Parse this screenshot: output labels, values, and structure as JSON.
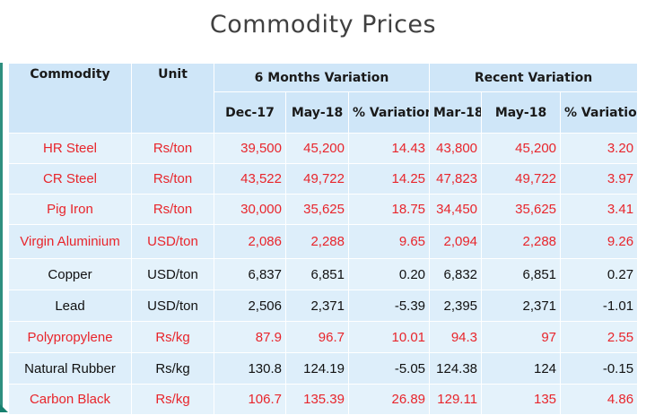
{
  "title": "Commodity Prices",
  "headers": {
    "commodity": "Commodity",
    "unit": "Unit",
    "six_month": "6 Months  Variation",
    "recent": "Recent Variation",
    "sub": [
      "Dec-17",
      "May-18",
      "% Variation",
      "Mar-18",
      "May-18",
      "% Variation"
    ]
  },
  "colors": {
    "red": "#e8252b",
    "black": "#111111",
    "header_bg": "#cfe6f8"
  },
  "rows": [
    {
      "name": "HR Steel",
      "unit": "Rs/ton",
      "dec17": "39,500",
      "may18a": "45,200",
      "var6": "14.43",
      "mar18": "43,800",
      "may18b": "45,200",
      "varr": "3.20",
      "color": "red"
    },
    {
      "name": "CR Steel",
      "unit": "Rs/ton",
      "dec17": "43,522",
      "may18a": "49,722",
      "var6": "14.25",
      "mar18": "47,823",
      "may18b": "49,722",
      "varr": "3.97",
      "color": "red"
    },
    {
      "name": "Pig Iron",
      "unit": "Rs/ton",
      "dec17": "30,000",
      "may18a": "35,625",
      "var6": "18.75",
      "mar18": "34,450",
      "may18b": "35,625",
      "varr": "3.41",
      "color": "red"
    },
    {
      "name": "Virgin Aluminium",
      "unit": "USD/ton",
      "dec17": "2,086",
      "may18a": "2,288",
      "var6": "9.65",
      "mar18": "2,094",
      "may18b": "2,288",
      "varr": "9.26",
      "color": "red"
    },
    {
      "name": "Copper",
      "unit": "USD/ton",
      "dec17": "6,837",
      "may18a": "6,851",
      "var6": "0.20",
      "mar18": "6,832",
      "may18b": "6,851",
      "varr": "0.27",
      "color": "black"
    },
    {
      "name": "Lead",
      "unit": "USD/ton",
      "dec17": "2,506",
      "may18a": "2,371",
      "var6": "-5.39",
      "mar18": "2,395",
      "may18b": "2,371",
      "varr": "-1.01",
      "color": "black"
    },
    {
      "name": "Polypropylene",
      "unit": "Rs/kg",
      "dec17": "87.9",
      "may18a": "96.7",
      "var6": "10.01",
      "mar18": "94.3",
      "may18b": "97",
      "varr": "2.55",
      "color": "red"
    },
    {
      "name": "Natural Rubber",
      "unit": "Rs/kg",
      "dec17": "130.8",
      "may18a": "124.19",
      "var6": "-5.05",
      "mar18": "124.38",
      "may18b": "124",
      "varr": "-0.15",
      "color": "black"
    },
    {
      "name": "Carbon Black",
      "unit": "Rs/kg",
      "dec17": "106.7",
      "may18a": "135.39",
      "var6": "26.89",
      "mar18": "129.11",
      "may18b": "135",
      "varr": "4.86",
      "color": "red"
    }
  ]
}
